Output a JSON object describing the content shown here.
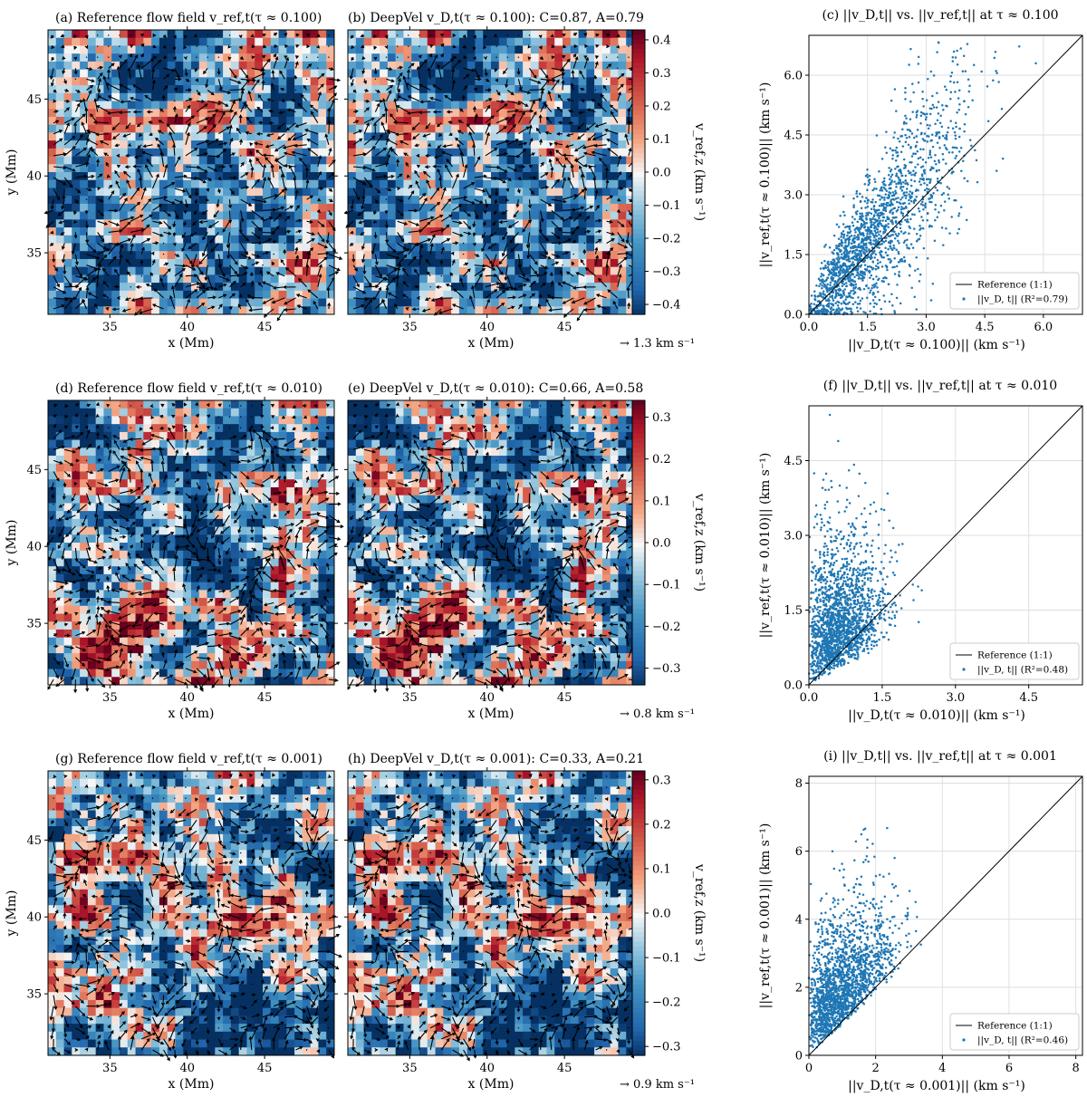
{
  "colors": {
    "dark_blue": "#053061",
    "mid_blue": "#2166ac",
    "light_blue": "#92c5de",
    "white": "#f7f7f7",
    "light_red": "#f4a582",
    "mid_red": "#d6604d",
    "dark_red": "#b2182b",
    "scatter": "#1f77b4",
    "grid": "#dddddd"
  },
  "chart_data": [
    {
      "type": "heatmap",
      "id": "a",
      "title": "(a) Reference flow field v_ref,t(τ ≈ 0.100)",
      "xlabel": "x (Mm)",
      "ylabel": "y (Mm)",
      "xlim": [
        31,
        49.5
      ],
      "ylim": [
        31,
        49.5
      ],
      "xticks": [
        "35",
        "40",
        "45"
      ],
      "yticks": [
        "35",
        "40",
        "45"
      ],
      "row": 0,
      "seed": 11
    },
    {
      "type": "heatmap",
      "id": "b",
      "title": "(b) DeepVel v_D,t(τ ≈ 0.100): C=0.87, A=0.79",
      "xlabel": "x (Mm)",
      "xlim": [
        31,
        49.5
      ],
      "ylim": [
        31,
        49.5
      ],
      "xticks": [
        "35",
        "40",
        "45",
        ""
      ],
      "yticks": [],
      "colorbar": {
        "label": "v_ref,z (km s⁻¹)",
        "vmin": -0.43,
        "vmax": 0.43,
        "ticks": [
          "0.4",
          "0.3",
          "0.2",
          "0.1",
          "0.0",
          "−0.1",
          "−0.2",
          "−0.3",
          "−0.4"
        ],
        "tick_values": [
          0.4,
          0.3,
          0.2,
          0.1,
          0.0,
          -0.1,
          -0.2,
          -0.3,
          -0.4
        ]
      },
      "quiver_key": "→ 1.3 km s⁻¹",
      "row": 0,
      "seed": 11
    },
    {
      "type": "scatter",
      "id": "c",
      "title": "(c) ||v_D,t|| vs. ||v_ref,t|| at τ ≈ 0.100",
      "xlabel": "||v_D,t(τ ≈ 0.100)|| (km s⁻¹)",
      "ylabel": "||v_ref,t(τ ≈ 0.100)|| (km s⁻¹)",
      "xlim": [
        0,
        7.0
      ],
      "ylim": [
        0,
        7.0
      ],
      "xticks": [
        0.0,
        1.5,
        3.0,
        4.5,
        6.0
      ],
      "yticks": [
        0.0,
        1.5,
        3.0,
        4.5,
        6.0
      ],
      "tick_labels_x": [
        "0.0",
        "1.5",
        "3.0",
        "4.5",
        "6.0"
      ],
      "tick_labels_y": [
        "0.0",
        "1.5",
        "3.0",
        "4.5",
        "6.0"
      ],
      "legend": {
        "line": "Reference (1:1)",
        "points": "||v_D, t|| (R²=0.79)"
      },
      "r2": 0.79,
      "n_points": 1800,
      "shape": "a",
      "seed": 101
    },
    {
      "type": "heatmap",
      "id": "d",
      "title": "(d) Reference flow field v_ref,t(τ ≈ 0.010)",
      "ylabel": "y (Mm)",
      "xlabel": "x (Mm)",
      "xlim": [
        31,
        49.5
      ],
      "ylim": [
        31,
        49.5
      ],
      "xticks": [
        "35",
        "40",
        "45"
      ],
      "yticks": [
        "35",
        "40",
        "45"
      ],
      "row": 1,
      "seed": 23
    },
    {
      "type": "heatmap",
      "id": "e",
      "title": "(e) DeepVel v_D,t(τ ≈ 0.010): C=0.66, A=0.58",
      "xlabel": "x (Mm)",
      "xlim": [
        31,
        49.5
      ],
      "ylim": [
        31,
        49.5
      ],
      "xticks": [
        "35",
        "40",
        "45",
        ""
      ],
      "yticks": [],
      "colorbar": {
        "label": "v_ref,z (km s⁻¹)",
        "vmin": -0.34,
        "vmax": 0.34,
        "ticks": [
          "0.3",
          "0.2",
          "0.1",
          "0.0",
          "−0.1",
          "−0.2",
          "−0.3"
        ],
        "tick_values": [
          0.3,
          0.2,
          0.1,
          0.0,
          -0.1,
          -0.2,
          -0.3
        ]
      },
      "quiver_key": "→ 0.8 km s⁻¹",
      "row": 1,
      "seed": 23
    },
    {
      "type": "scatter",
      "id": "f",
      "title": "(f) ||v_D,t|| vs. ||v_ref,t|| at τ ≈ 0.010",
      "xlabel": "||v_D,t(τ ≈ 0.010)|| (km s⁻¹)",
      "ylabel": "||v_ref,t(τ ≈ 0.010)|| (km s⁻¹)",
      "xlim": [
        0,
        5.6
      ],
      "ylim": [
        0,
        5.6
      ],
      "xticks": [
        0.0,
        1.5,
        3.0,
        4.5
      ],
      "yticks": [
        0.0,
        1.5,
        3.0,
        4.5
      ],
      "tick_labels_x": [
        "0.0",
        "1.5",
        "3.0",
        "4.5"
      ],
      "tick_labels_y": [
        "0.0",
        "1.5",
        "3.0",
        "4.5"
      ],
      "legend": {
        "line": "Reference (1:1)",
        "points": "||v_D, t|| (R²=0.48)"
      },
      "r2": 0.48,
      "n_points": 1800,
      "shape": "f",
      "seed": 202
    },
    {
      "type": "heatmap",
      "id": "g",
      "title": "(g) Reference flow field v_ref,t(τ ≈ 0.001)",
      "ylabel": "y (Mm)",
      "xlabel": "x (Mm)",
      "xlim": [
        31,
        49.5
      ],
      "ylim": [
        31,
        49.5
      ],
      "xticks": [
        "35",
        "40",
        "45"
      ],
      "yticks": [
        "35",
        "40",
        "45"
      ],
      "row": 2,
      "seed": 37
    },
    {
      "type": "heatmap",
      "id": "h",
      "title": "(h) DeepVel v_D,t(τ ≈ 0.001): C=0.33, A=0.21",
      "xlabel": "x (Mm)",
      "xlim": [
        31,
        49.5
      ],
      "ylim": [
        31,
        49.5
      ],
      "xticks": [
        "35",
        "40",
        "45",
        ""
      ],
      "yticks": [],
      "colorbar": {
        "label": "v_ref,z (km s⁻¹)",
        "vmin": -0.32,
        "vmax": 0.32,
        "ticks": [
          "0.3",
          "0.2",
          "0.1",
          "0.0",
          "−0.1",
          "−0.2",
          "−0.3"
        ],
        "tick_values": [
          0.3,
          0.2,
          0.1,
          0.0,
          -0.1,
          -0.2,
          -0.3
        ]
      },
      "quiver_key": "→ 0.9 km s⁻¹",
      "row": 2,
      "seed": 37
    },
    {
      "type": "scatter",
      "id": "i",
      "title": "(i) ||v_D,t|| vs. ||v_ref,t|| at τ ≈ 0.001",
      "xlabel": "||v_D,t(τ ≈ 0.001)|| (km s⁻¹)",
      "ylabel": "||v_ref,t(τ ≈ 0.001)|| (km s⁻¹)",
      "xlim": [
        0,
        8.2
      ],
      "ylim": [
        0,
        8.2
      ],
      "xticks": [
        0,
        2,
        4,
        6,
        8
      ],
      "yticks": [
        0,
        2,
        4,
        6,
        8
      ],
      "tick_labels_x": [
        "0",
        "2",
        "4",
        "6",
        "8"
      ],
      "tick_labels_y": [
        "0",
        "2",
        "4",
        "6",
        "8"
      ],
      "legend": {
        "line": "Reference (1:1)",
        "points": "||v_D, t|| (R²=0.46)"
      },
      "r2": 0.46,
      "n_points": 1800,
      "shape": "i",
      "seed": 303
    }
  ]
}
